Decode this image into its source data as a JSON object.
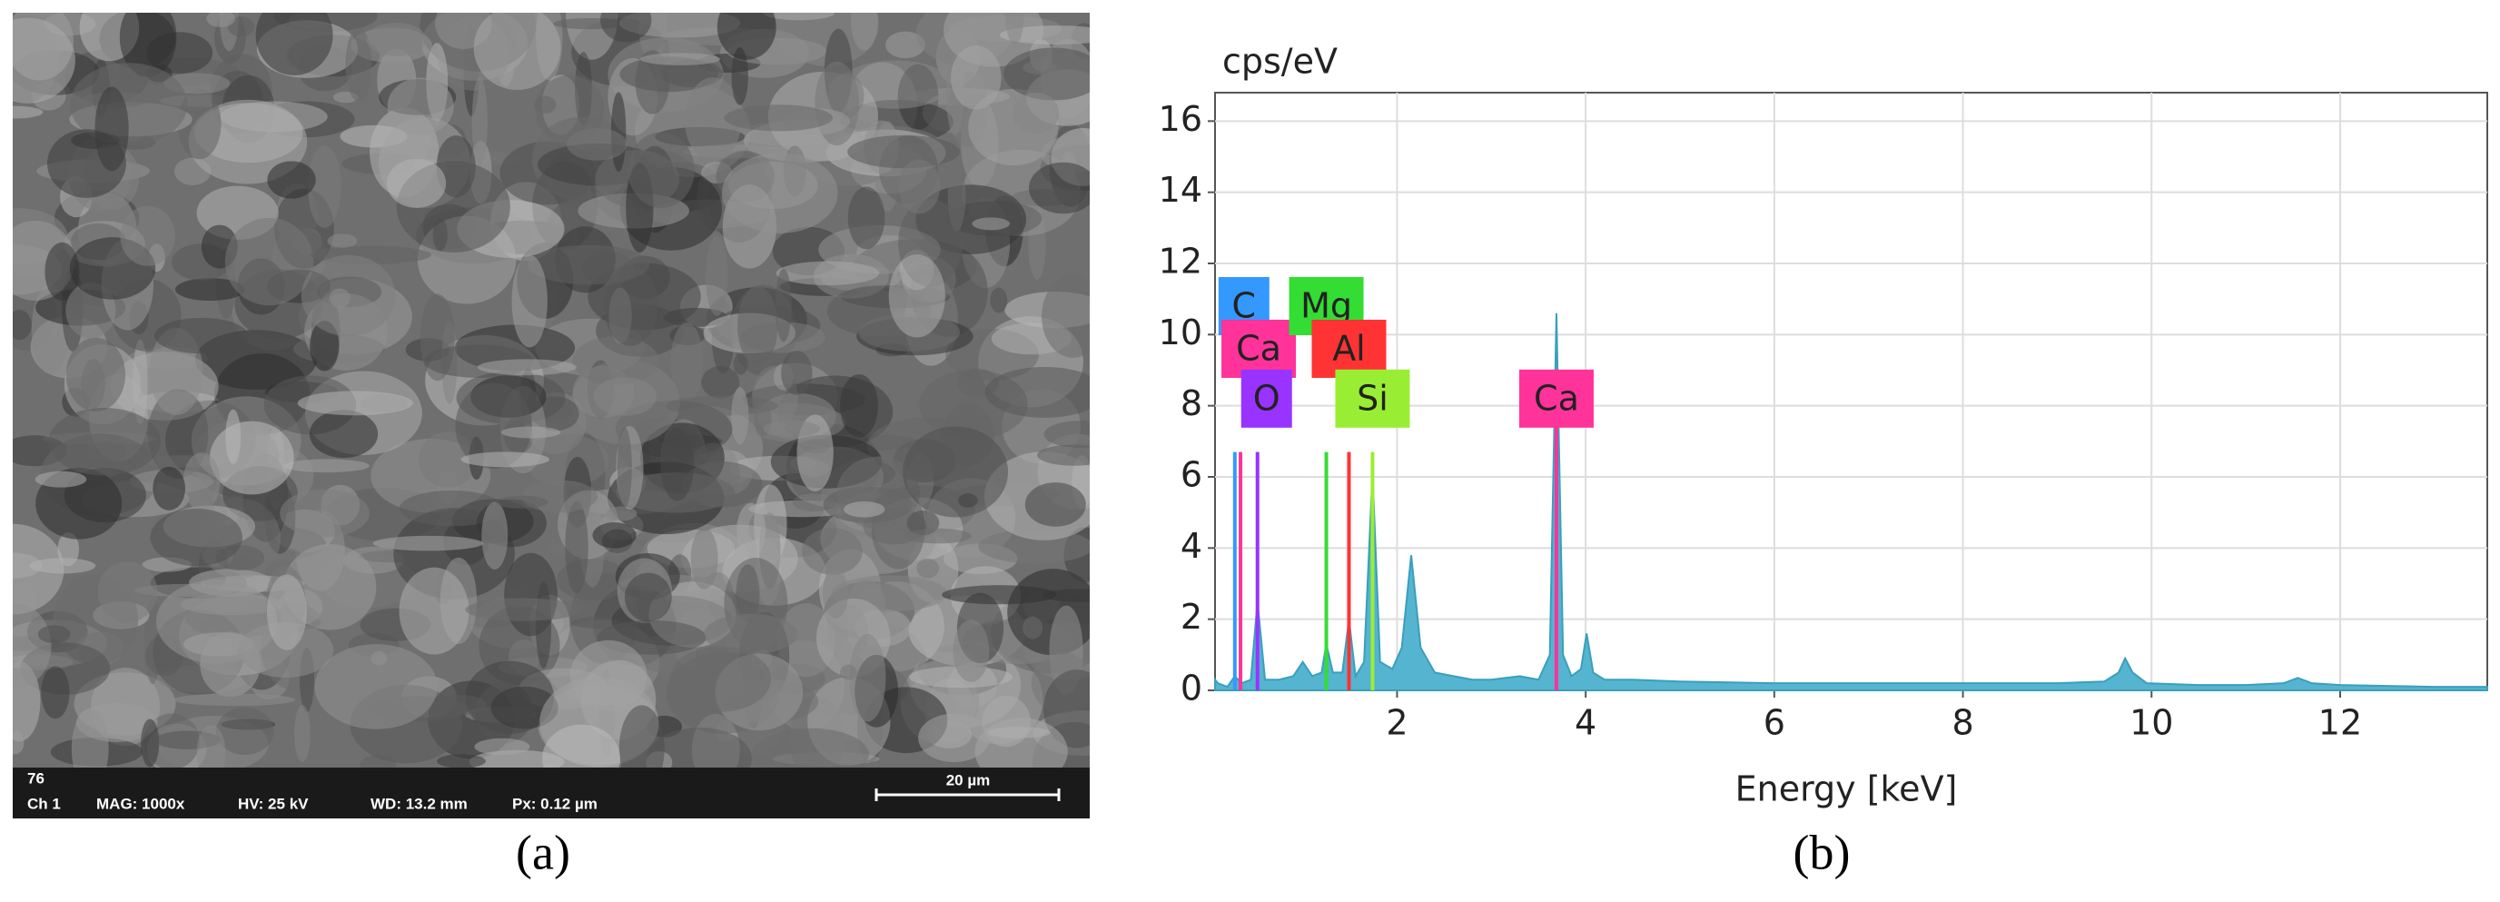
{
  "sem_image": {
    "frame": "76",
    "channel": "Ch 1",
    "magnification": "MAG: 1000x",
    "voltage": "HV: 25 kV",
    "working_distance": "WD: 13.2 mm",
    "pixel_size": "Px: 0.12 µm",
    "scale_bar": "20 µm"
  },
  "captions": {
    "a": "(a)",
    "b": "(b)"
  },
  "chart_data": {
    "type": "area",
    "ylabel": "cps/eV",
    "xlabel": "Energy [keV]",
    "x": [
      0.07,
      0.1,
      0.2,
      0.28,
      0.35,
      0.45,
      0.52,
      0.6,
      0.75,
      0.9,
      1.0,
      1.1,
      1.2,
      1.25,
      1.32,
      1.42,
      1.49,
      1.56,
      1.65,
      1.74,
      1.82,
      1.95,
      2.05,
      2.15,
      2.25,
      2.4,
      2.6,
      2.8,
      3.0,
      3.3,
      3.5,
      3.62,
      3.69,
      3.76,
      3.85,
      3.95,
      4.01,
      4.08,
      4.2,
      4.5,
      5,
      6,
      7,
      8,
      9,
      9.5,
      9.65,
      9.72,
      9.8,
      9.95,
      10.5,
      11,
      11.4,
      11.55,
      11.7,
      12,
      13,
      13.56
    ],
    "values": [
      0.3,
      0.2,
      0.1,
      0.4,
      0.2,
      0.3,
      2.5,
      0.3,
      0.3,
      0.4,
      0.8,
      0.4,
      0.5,
      1.3,
      0.5,
      0.5,
      2.0,
      0.4,
      0.8,
      6.1,
      0.8,
      0.6,
      1.2,
      3.8,
      1.2,
      0.5,
      0.4,
      0.3,
      0.3,
      0.4,
      0.3,
      1.0,
      10.6,
      1.0,
      0.4,
      0.6,
      1.6,
      0.5,
      0.3,
      0.3,
      0.25,
      0.2,
      0.2,
      0.2,
      0.2,
      0.25,
      0.5,
      0.9,
      0.5,
      0.2,
      0.15,
      0.15,
      0.2,
      0.35,
      0.2,
      0.15,
      0.1,
      0.1
    ],
    "color": "#55b4cf",
    "xlim": [
      0.07,
      13.56
    ],
    "ylim": [
      0,
      16.8
    ],
    "xticks": [
      2,
      4,
      6,
      8,
      10,
      12
    ],
    "yticks": [
      0,
      2,
      4,
      6,
      8,
      10,
      12,
      14,
      16
    ],
    "grid": true,
    "elements": [
      {
        "label": "C",
        "energy": 0.28,
        "height": 6.7,
        "color": "#3399ff"
      },
      {
        "label": "Ca",
        "energy": 0.34,
        "height": 6.7,
        "color": "#ff3399"
      },
      {
        "label": "O",
        "energy": 0.52,
        "height": 6.7,
        "color": "#9933ff"
      },
      {
        "label": "Mg",
        "energy": 1.25,
        "height": 6.7,
        "color": "#33dd33"
      },
      {
        "label": "Al",
        "energy": 1.49,
        "height": 6.7,
        "color": "#ff3333"
      },
      {
        "label": "Si",
        "energy": 1.74,
        "height": 6.7,
        "color": "#99ee33"
      },
      {
        "label": "Ca",
        "energy": 3.69,
        "height": 7.5,
        "color": "#ff3399"
      }
    ]
  }
}
